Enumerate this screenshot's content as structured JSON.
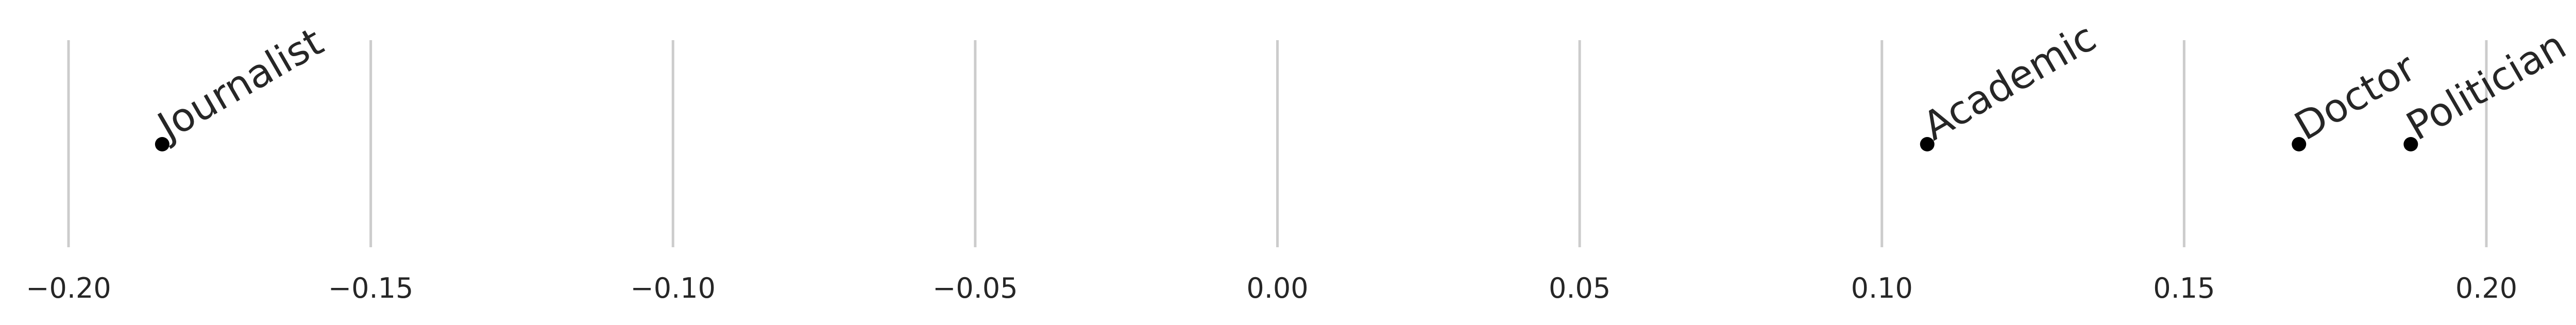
{
  "chart_data": {
    "type": "scatter",
    "title": "",
    "xlabel": "",
    "ylabel": "",
    "xlim": [
      -0.2,
      0.2
    ],
    "grid": "vertical",
    "legend": "none",
    "x_ticks": [
      -0.2,
      -0.15,
      -0.1,
      -0.05,
      0.0,
      0.05,
      0.1,
      0.15,
      0.2
    ],
    "x_tick_labels": [
      "−0.20",
      "−0.15",
      "−0.10",
      "−0.05",
      "0.00",
      "0.05",
      "0.10",
      "0.15",
      "0.20"
    ],
    "points": [
      {
        "label": "Journalist",
        "x": -0.1845
      },
      {
        "label": "Academic",
        "x": 0.1075
      },
      {
        "label": "Doctor",
        "x": 0.169
      },
      {
        "label": "Politician",
        "x": 0.1875
      }
    ]
  }
}
